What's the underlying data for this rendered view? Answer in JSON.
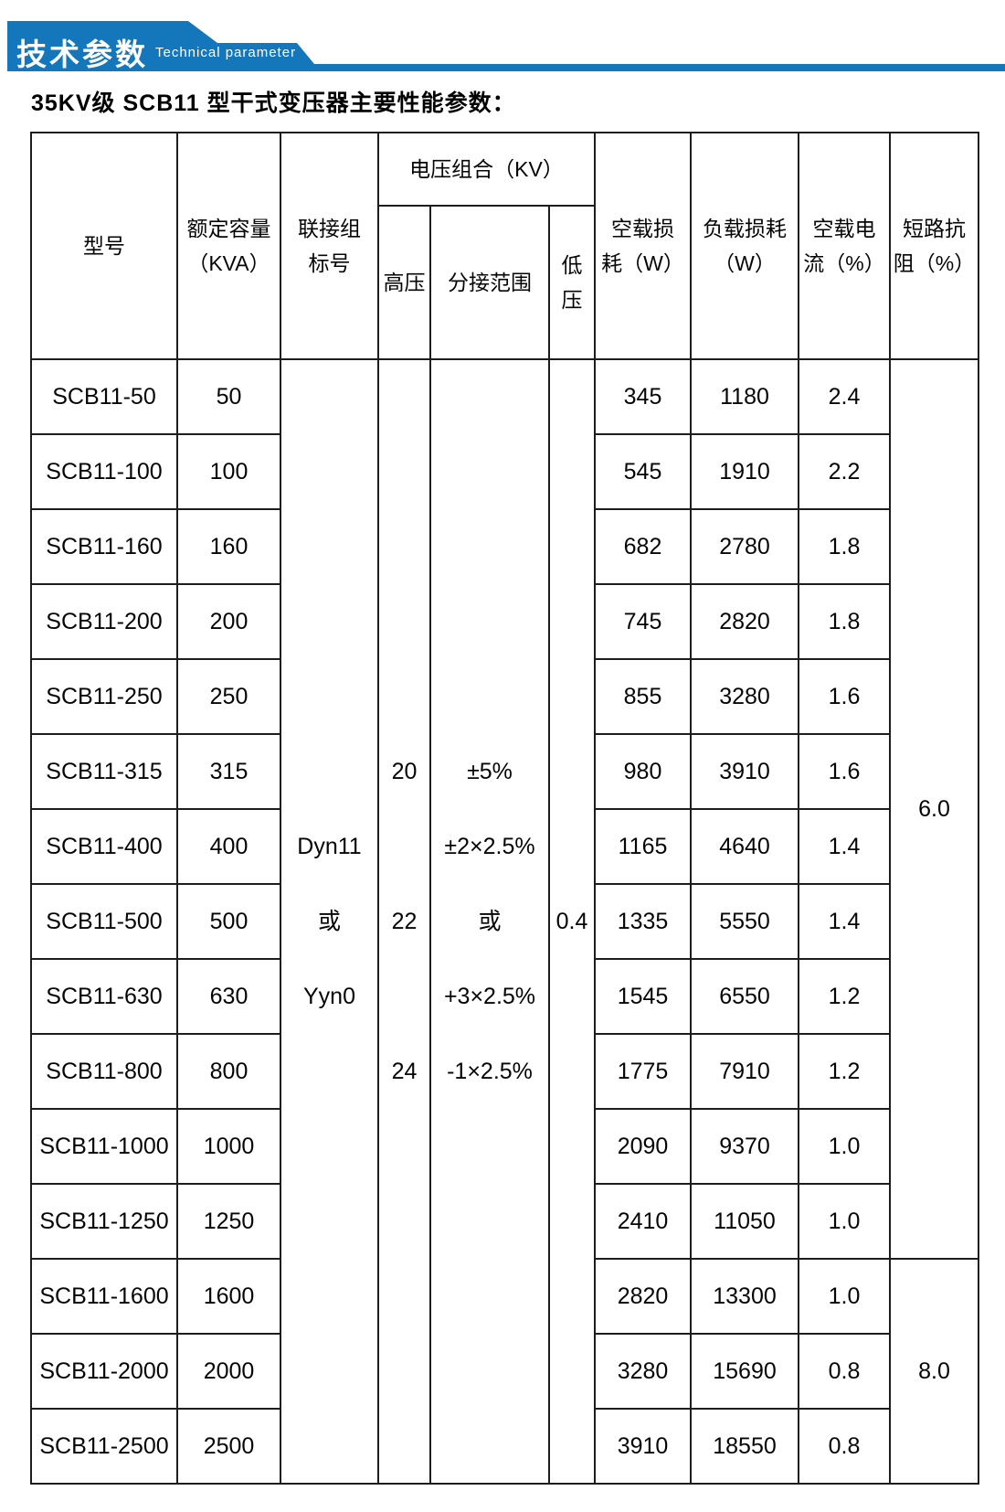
{
  "banner": {
    "title_cn": "技术参数",
    "title_en": "Technical parameter",
    "blue": "#1477bb"
  },
  "doc_title": "35KV级 SCB11 型干式变压器主要性能参数：",
  "table": {
    "headers": {
      "model": "型号",
      "capacity": "额定容量\n（KVA）",
      "connection": "联接组\n标号",
      "voltage_group": "电压组合（KV）",
      "hv": "高压",
      "tap_range": "分接范围",
      "lv": "低\n压",
      "no_load_loss": "空载损\n耗（W）",
      "load_loss": "负载损耗\n（W）",
      "no_load_current": "空载电\n流（%）",
      "impedance": "短路抗\n阻（%）"
    },
    "merged": {
      "connection_value": "Dyn11\n或\nYyn0",
      "hv_values": "20\n22\n24",
      "tap_values": "±5%\n±2×2.5%\n或\n+3×2.5%\n-1×2.5%",
      "lv_value": "0.4",
      "impedance_low": "6.0",
      "impedance_high": "8.0"
    },
    "rows": [
      {
        "model": "SCB11-50",
        "capacity": "50",
        "no_load_loss": "345",
        "load_loss": "1180",
        "no_load_current": "2.4"
      },
      {
        "model": "SCB11-100",
        "capacity": "100",
        "no_load_loss": "545",
        "load_loss": "1910",
        "no_load_current": "2.2"
      },
      {
        "model": "SCB11-160",
        "capacity": "160",
        "no_load_loss": "682",
        "load_loss": "2780",
        "no_load_current": "1.8"
      },
      {
        "model": "SCB11-200",
        "capacity": "200",
        "no_load_loss": "745",
        "load_loss": "2820",
        "no_load_current": "1.8"
      },
      {
        "model": "SCB11-250",
        "capacity": "250",
        "no_load_loss": "855",
        "load_loss": "3280",
        "no_load_current": "1.6"
      },
      {
        "model": "SCB11-315",
        "capacity": "315",
        "no_load_loss": "980",
        "load_loss": "3910",
        "no_load_current": "1.6"
      },
      {
        "model": "SCB11-400",
        "capacity": "400",
        "no_load_loss": "1165",
        "load_loss": "4640",
        "no_load_current": "1.4"
      },
      {
        "model": "SCB11-500",
        "capacity": "500",
        "no_load_loss": "1335",
        "load_loss": "5550",
        "no_load_current": "1.4"
      },
      {
        "model": "SCB11-630",
        "capacity": "630",
        "no_load_loss": "1545",
        "load_loss": "6550",
        "no_load_current": "1.2"
      },
      {
        "model": "SCB11-800",
        "capacity": "800",
        "no_load_loss": "1775",
        "load_loss": "7910",
        "no_load_current": "1.2"
      },
      {
        "model": "SCB11-1000",
        "capacity": "1000",
        "no_load_loss": "2090",
        "load_loss": "9370",
        "no_load_current": "1.0"
      },
      {
        "model": "SCB11-1250",
        "capacity": "1250",
        "no_load_loss": "2410",
        "load_loss": "11050",
        "no_load_current": "1.0"
      },
      {
        "model": "SCB11-1600",
        "capacity": "1600",
        "no_load_loss": "2820",
        "load_loss": "13300",
        "no_load_current": "1.0"
      },
      {
        "model": "SCB11-2000",
        "capacity": "2000",
        "no_load_loss": "3280",
        "load_loss": "15690",
        "no_load_current": "0.8"
      },
      {
        "model": "SCB11-2500",
        "capacity": "2500",
        "no_load_loss": "3910",
        "load_loss": "18550",
        "no_load_current": "0.8"
      }
    ]
  }
}
